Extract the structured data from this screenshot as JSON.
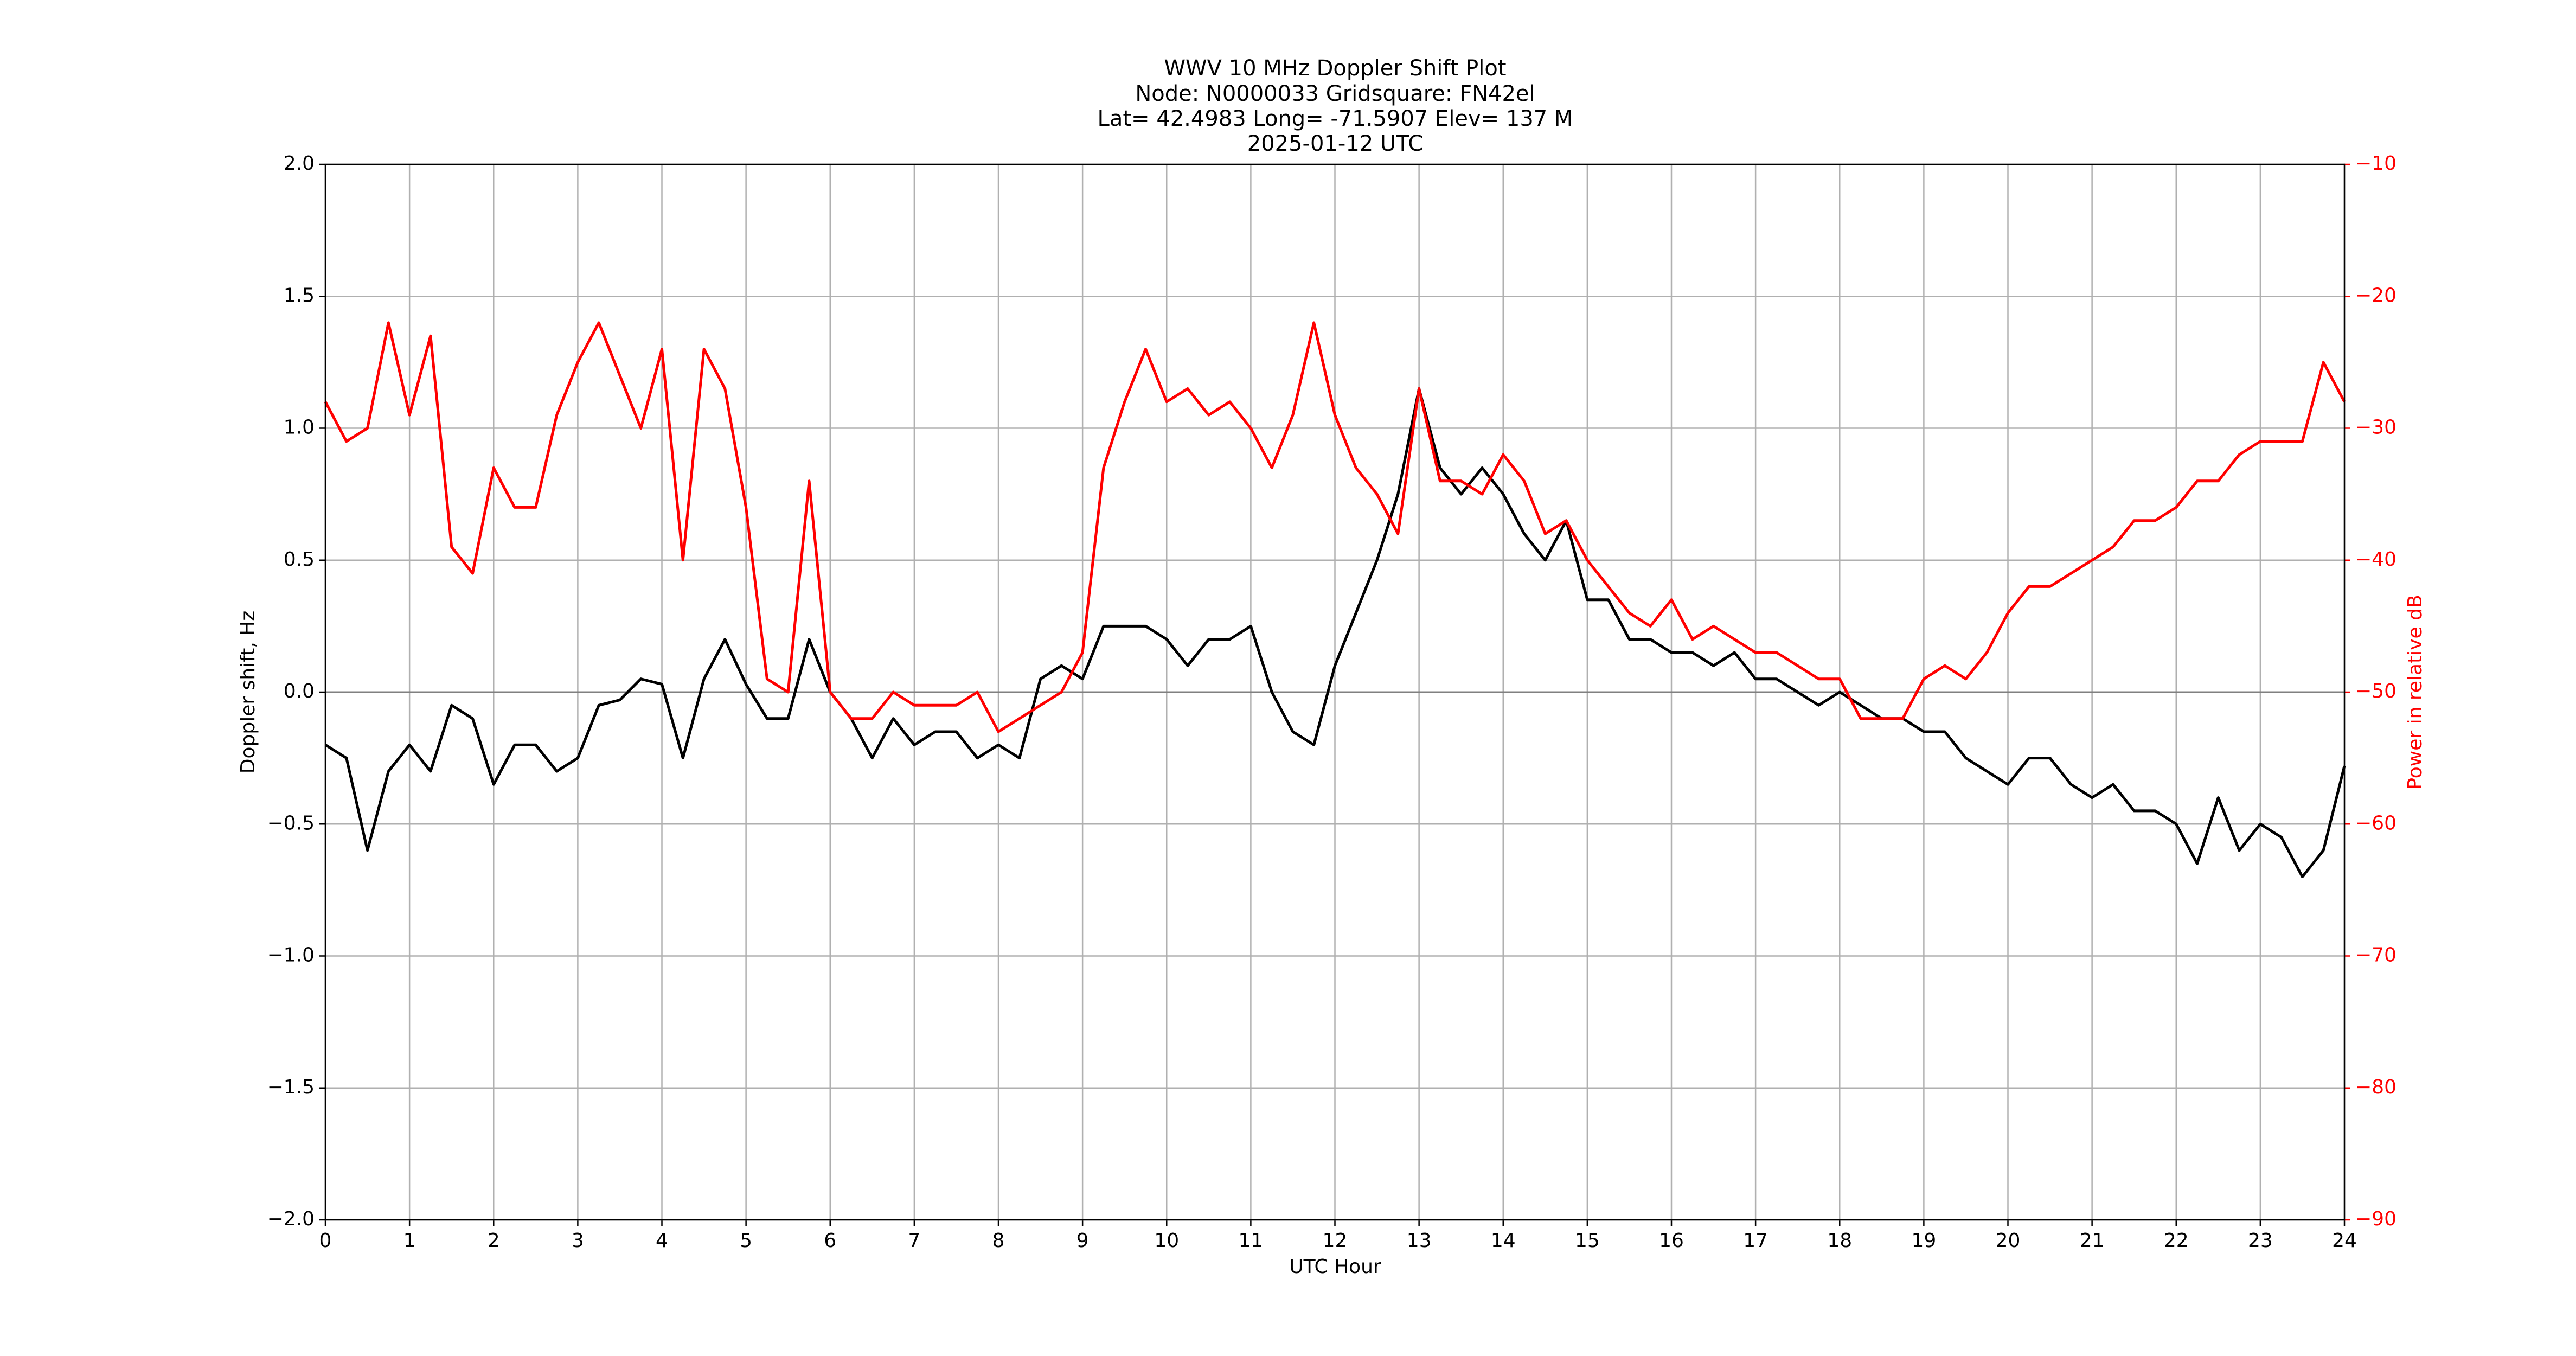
{
  "chart_data": {
    "type": "line",
    "title": [
      "WWV 10 MHz Doppler Shift Plot",
      "Node:  N0000033     Gridsquare:  FN42el",
      "Lat= 42.4983    Long= -71.5907    Elev= 137 M",
      "2025-01-12  UTC"
    ],
    "xlabel": "UTC Hour",
    "ylabel": "Doppler shift, Hz",
    "y2label": "Power in relative dB",
    "x": [
      0,
      0.25,
      0.5,
      0.75,
      1,
      1.25,
      1.5,
      1.75,
      2,
      2.25,
      2.5,
      2.75,
      3,
      3.25,
      3.5,
      3.75,
      4,
      4.25,
      4.5,
      4.75,
      5,
      5.25,
      5.5,
      5.75,
      6,
      6.25,
      6.5,
      6.75,
      7,
      7.25,
      7.5,
      7.75,
      8,
      8.25,
      8.5,
      8.75,
      9,
      9.25,
      9.5,
      9.75,
      10,
      10.25,
      10.5,
      10.75,
      11,
      11.25,
      11.5,
      11.75,
      12,
      12.25,
      12.5,
      12.75,
      13,
      13.25,
      13.5,
      13.75,
      14,
      14.25,
      14.5,
      14.75,
      15,
      15.25,
      15.5,
      15.75,
      16,
      16.25,
      16.5,
      16.75,
      17,
      17.25,
      17.5,
      17.75,
      18,
      18.25,
      18.5,
      18.75,
      19,
      19.25,
      19.5,
      19.75,
      20,
      20.25,
      20.5,
      20.75,
      21,
      21.25,
      21.5,
      21.75,
      22,
      22.25,
      22.5,
      22.75,
      23,
      23.25,
      23.5,
      23.75,
      24
    ],
    "series": [
      {
        "color": "#000000",
        "values": [
          -0.2,
          -0.25,
          -0.6,
          -0.3,
          -0.2,
          -0.3,
          -0.05,
          -0.1,
          -0.35,
          -0.2,
          -0.2,
          -0.3,
          -0.25,
          -0.05,
          -0.03,
          0.05,
          0.03,
          -0.25,
          0.05,
          0.2,
          0.03,
          -0.1,
          -0.1,
          0.2,
          0.0,
          -0.1,
          -0.25,
          -0.1,
          -0.2,
          -0.15,
          -0.15,
          -0.25,
          -0.2,
          -0.25,
          0.05,
          0.1,
          0.05,
          0.25,
          0.25,
          0.25,
          0.2,
          0.1,
          0.2,
          0.2,
          0.25,
          0.0,
          -0.15,
          -0.2,
          0.1,
          0.3,
          0.5,
          0.75,
          1.15,
          0.85,
          0.75,
          0.85,
          0.75,
          0.6,
          0.5,
          0.65,
          0.35,
          0.35,
          0.2,
          0.2,
          0.15,
          0.15,
          0.1,
          0.15,
          0.05,
          0.05,
          0.0,
          -0.05,
          0.0,
          -0.05,
          -0.1,
          -0.1,
          -0.15,
          -0.15,
          -0.25,
          -0.3,
          -0.35,
          -0.25,
          -0.25,
          -0.35,
          -0.4,
          -0.35,
          -0.45,
          -0.45,
          -0.5,
          -0.65,
          -0.4,
          -0.6,
          -0.5,
          -0.55,
          -0.7,
          -0.6,
          -0.28
        ]
      },
      {
        "color": "#ff0000",
        "axis": "y2",
        "values": [
          -28,
          -31,
          -30,
          -22,
          -29,
          -23,
          -39,
          -41,
          -33,
          -36,
          -36,
          -29,
          -25,
          -22,
          -26,
          -30,
          -24,
          -40,
          -24,
          -27,
          -36,
          -49,
          -50,
          -34,
          -50,
          -52,
          -52,
          -50,
          -51,
          -51,
          -51,
          -50,
          -53,
          -52,
          -51,
          -50,
          -47,
          -33,
          -28,
          -24,
          -28,
          -27,
          -29,
          -28,
          -30,
          -33,
          -29,
          -22,
          -29,
          -33,
          -35,
          -38,
          -27,
          -34,
          -34,
          -35,
          -32,
          -34,
          -38,
          -37,
          -40,
          -42,
          -44,
          -45,
          -43,
          -46,
          -45,
          -46,
          -47,
          -47,
          -48,
          -49,
          -49,
          -52,
          -52,
          -52,
          -49,
          -48,
          -49,
          -47,
          -44,
          -42,
          -42,
          -41,
          -40,
          -39,
          -37,
          -37,
          -36,
          -34,
          -34,
          -32,
          -31,
          -31,
          -31,
          -25,
          -28
        ]
      }
    ],
    "xlim": [
      0,
      24
    ],
    "xticks": [
      0,
      1,
      2,
      3,
      4,
      5,
      6,
      7,
      8,
      9,
      10,
      11,
      12,
      13,
      14,
      15,
      16,
      17,
      18,
      19,
      20,
      21,
      22,
      23,
      24
    ],
    "ylim": [
      -2,
      2
    ],
    "yticks": [
      {
        "value": -2,
        "label": "−2.0"
      },
      {
        "value": -1.5,
        "label": "−1.5"
      },
      {
        "value": -1,
        "label": "−1.0"
      },
      {
        "value": -0.5,
        "label": "−0.5"
      },
      {
        "value": 0,
        "label": "0.0"
      },
      {
        "value": 0.5,
        "label": "0.5"
      },
      {
        "value": 1,
        "label": "1.0"
      },
      {
        "value": 1.5,
        "label": "1.5"
      },
      {
        "value": 2,
        "label": "2.0"
      }
    ],
    "y2lim": [
      -90,
      -10
    ],
    "y2ticks": [
      {
        "value": -90,
        "label": "−90"
      },
      {
        "value": -80,
        "label": "−80"
      },
      {
        "value": -70,
        "label": "−70"
      },
      {
        "value": -60,
        "label": "−60"
      },
      {
        "value": -50,
        "label": "−50"
      },
      {
        "value": -40,
        "label": "−40"
      },
      {
        "value": -30,
        "label": "−30"
      },
      {
        "value": -20,
        "label": "−20"
      },
      {
        "value": -10,
        "label": "−10"
      }
    ],
    "hline": 0,
    "grid": true
  }
}
